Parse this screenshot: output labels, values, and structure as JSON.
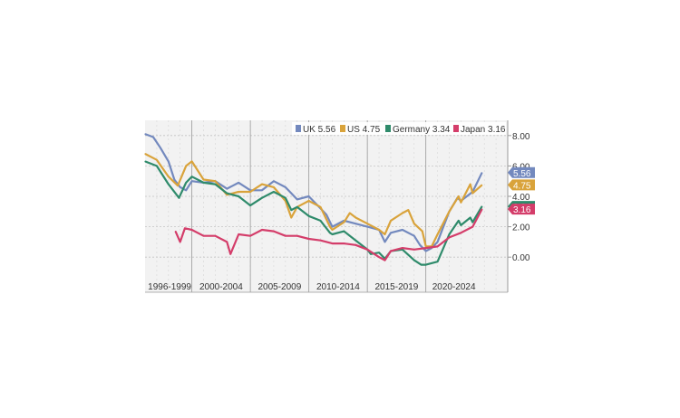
{
  "chart_data": {
    "type": "line",
    "grid": true,
    "legend_position": "top-right",
    "ylim": [
      -1,
      9
    ],
    "y_ticks": [
      0,
      2,
      4,
      6,
      8
    ],
    "y_tick_labels": [
      "0.00",
      "2.00",
      "4.00",
      "6.00",
      "8.00"
    ],
    "x_range": [
      1996,
      2027
    ],
    "period_labels": [
      "1996-1999",
      "2000-2004",
      "2005-2009",
      "2010-2014",
      "2015-2019",
      "2020-2024"
    ],
    "period_dividers": [
      2000,
      2005,
      2010,
      2015,
      2020
    ],
    "series": [
      {
        "name": "UK",
        "legend": "UK 5.56",
        "last_label": "5.56",
        "color": "#7389be",
        "x": [
          1996.0,
          1996.7,
          1997.3,
          1998.0,
          1998.5,
          1999.0,
          1999.5,
          2000.0,
          2001.0,
          2002.0,
          2003.0,
          2004.0,
          2005.0,
          2006.0,
          2007.0,
          2008.0,
          2008.5,
          2009.0,
          2010.0,
          2011.0,
          2011.5,
          2012.0,
          2013.0,
          2014.0,
          2015.0,
          2016.0,
          2016.5,
          2017.0,
          2018.0,
          2019.0,
          2019.5,
          2020.0,
          2020.5,
          2021.0,
          2022.0,
          2022.7,
          2023.0,
          2024.0,
          2024.8
        ],
        "y": [
          8.1,
          7.9,
          7.2,
          6.3,
          5.1,
          4.6,
          4.4,
          5.0,
          4.9,
          5.0,
          4.5,
          4.9,
          4.4,
          4.4,
          5.0,
          4.6,
          4.2,
          3.8,
          4.0,
          3.2,
          2.8,
          2.0,
          2.4,
          2.2,
          2.0,
          1.8,
          1.0,
          1.6,
          1.8,
          1.4,
          0.8,
          0.4,
          0.6,
          1.0,
          3.0,
          3.9,
          3.7,
          4.3,
          5.56
        ]
      },
      {
        "name": "US",
        "legend": "US 4.75",
        "last_label": "4.75",
        "color": "#d9a33b",
        "x": [
          1996.0,
          1997.0,
          1998.0,
          1998.8,
          1999.5,
          2000.0,
          2001.0,
          2002.0,
          2003.0,
          2004.0,
          2005.0,
          2006.0,
          2007.0,
          2008.0,
          2008.5,
          2009.0,
          2010.0,
          2011.0,
          2011.8,
          2012.0,
          2013.0,
          2013.5,
          2014.0,
          2015.0,
          2016.0,
          2016.5,
          2017.0,
          2018.0,
          2018.5,
          2019.0,
          2019.7,
          2020.0,
          2020.5,
          2021.0,
          2022.0,
          2022.8,
          2023.0,
          2023.8,
          2024.0,
          2024.8
        ],
        "y": [
          6.8,
          6.4,
          5.3,
          4.7,
          6.0,
          6.3,
          5.1,
          5.0,
          4.1,
          4.3,
          4.3,
          4.8,
          4.6,
          3.7,
          2.6,
          3.3,
          3.7,
          3.3,
          2.0,
          1.8,
          2.3,
          2.9,
          2.6,
          2.2,
          1.8,
          1.5,
          2.4,
          2.9,
          3.1,
          2.2,
          1.7,
          0.7,
          0.7,
          1.5,
          3.0,
          4.0,
          3.6,
          4.8,
          4.2,
          4.75
        ]
      },
      {
        "name": "Germany",
        "legend": "Germany 3.34",
        "last_label": "3.34",
        "color": "#2f8b6b",
        "x": [
          1996.0,
          1997.0,
          1998.0,
          1998.9,
          1999.5,
          2000.0,
          2001.0,
          2002.0,
          2003.0,
          2004.0,
          2005.0,
          2006.0,
          2007.0,
          2008.0,
          2008.5,
          2009.0,
          2010.0,
          2011.0,
          2011.8,
          2012.0,
          2013.0,
          2014.0,
          2015.0,
          2015.3,
          2016.0,
          2016.5,
          2017.0,
          2018.0,
          2019.0,
          2019.6,
          2020.0,
          2021.0,
          2022.0,
          2022.8,
          2023.0,
          2023.8,
          2024.0,
          2024.8
        ],
        "y": [
          6.3,
          6.0,
          4.8,
          3.9,
          4.9,
          5.3,
          4.9,
          4.8,
          4.2,
          4.0,
          3.4,
          3.9,
          4.3,
          3.9,
          3.1,
          3.3,
          2.7,
          2.4,
          1.6,
          1.5,
          1.7,
          1.1,
          0.5,
          0.2,
          0.3,
          -0.1,
          0.4,
          0.5,
          -0.2,
          -0.5,
          -0.5,
          -0.3,
          1.5,
          2.4,
          2.1,
          2.6,
          2.3,
          3.34
        ]
      },
      {
        "name": "Japan",
        "legend": "Japan 3.16",
        "last_label": "3.16",
        "color": "#d43d6a",
        "x": [
          1998.6,
          1999.0,
          1999.4,
          2000.0,
          2001.0,
          2002.0,
          2003.0,
          2003.3,
          2004.0,
          2005.0,
          2006.0,
          2007.0,
          2008.0,
          2009.0,
          2010.0,
          2011.0,
          2012.0,
          2013.0,
          2014.0,
          2015.0,
          2016.0,
          2016.5,
          2017.0,
          2018.0,
          2019.0,
          2020.0,
          2021.0,
          2022.0,
          2023.0,
          2024.0,
          2024.8
        ],
        "y": [
          1.7,
          1.0,
          1.9,
          1.8,
          1.4,
          1.4,
          1.0,
          0.2,
          1.5,
          1.4,
          1.8,
          1.7,
          1.4,
          1.4,
          1.2,
          1.1,
          0.9,
          0.9,
          0.8,
          0.5,
          0.0,
          -0.2,
          0.4,
          0.6,
          0.5,
          0.6,
          0.7,
          1.3,
          1.6,
          2.0,
          3.16
        ]
      }
    ]
  }
}
